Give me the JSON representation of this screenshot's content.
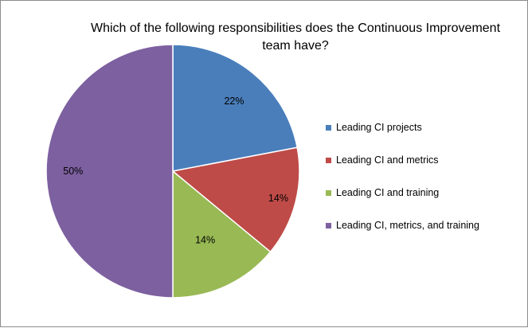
{
  "chart_data": {
    "type": "pie",
    "title": "Which of the following responsibilities does the Continuous Improvement team have?",
    "slices": [
      {
        "label": "Leading CI projects",
        "value": 22,
        "value_label": "22%",
        "color": "#4a7ebb"
      },
      {
        "label": "Leading CI and metrics",
        "value": 14,
        "value_label": "14%",
        "color": "#be4b48"
      },
      {
        "label": "Leading CI and training",
        "value": 14,
        "value_label": "14%",
        "color": "#98b954"
      },
      {
        "label": "Leading CI, metrics, and training",
        "value": 50,
        "value_label": "50%",
        "color": "#7d60a0"
      }
    ],
    "start_angle": "12 o'clock",
    "direction": "clockwise",
    "legend_position": "right"
  }
}
